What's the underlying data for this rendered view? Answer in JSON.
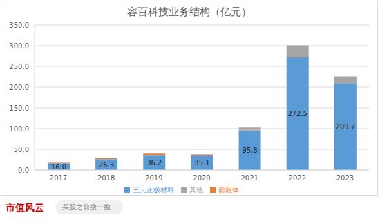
{
  "chart_data": {
    "type": "bar",
    "title": "容百科技业务结构（亿元）",
    "stacked": true,
    "grid": true,
    "legend": "bottom",
    "categories": [
      "2017",
      "2018",
      "2019",
      "2020",
      "2021",
      "2022",
      "2023"
    ],
    "series": [
      {
        "name": "三元正极材料",
        "color": "#5b9bd5",
        "values": [
          16.0,
          26.3,
          36.2,
          35.1,
          95.8,
          272.5,
          209.7
        ],
        "data_labels": true,
        "value_labels": [
          "16.0",
          "26.3",
          "36.2",
          "35.1",
          "95.8",
          "272.5",
          "209.7"
        ]
      },
      {
        "name": "前驱体",
        "color": "#ed7d31",
        "values": [
          1.5,
          3.0,
          3.5,
          1.5,
          1.5,
          1.0,
          0.5
        ]
      },
      {
        "name": "其他",
        "color": "#a5a5a5",
        "values": [
          0.5,
          0.7,
          1.0,
          1.2,
          5.5,
          27.5,
          15.8
        ]
      }
    ],
    "ylim": [
      0,
      350
    ],
    "yticks": [
      {
        "value": 0,
        "label": "0.0"
      },
      {
        "value": 50,
        "label": "50.0"
      },
      {
        "value": 100,
        "label": "100.0"
      },
      {
        "value": 150,
        "label": "150.0"
      },
      {
        "value": 200,
        "label": "200.0"
      },
      {
        "value": 250,
        "label": "250.0"
      },
      {
        "value": 300,
        "label": "300.0"
      },
      {
        "value": 350,
        "label": "350.0"
      }
    ],
    "annotations": [
      "市值风云",
      "买股之前搜一搜"
    ]
  }
}
